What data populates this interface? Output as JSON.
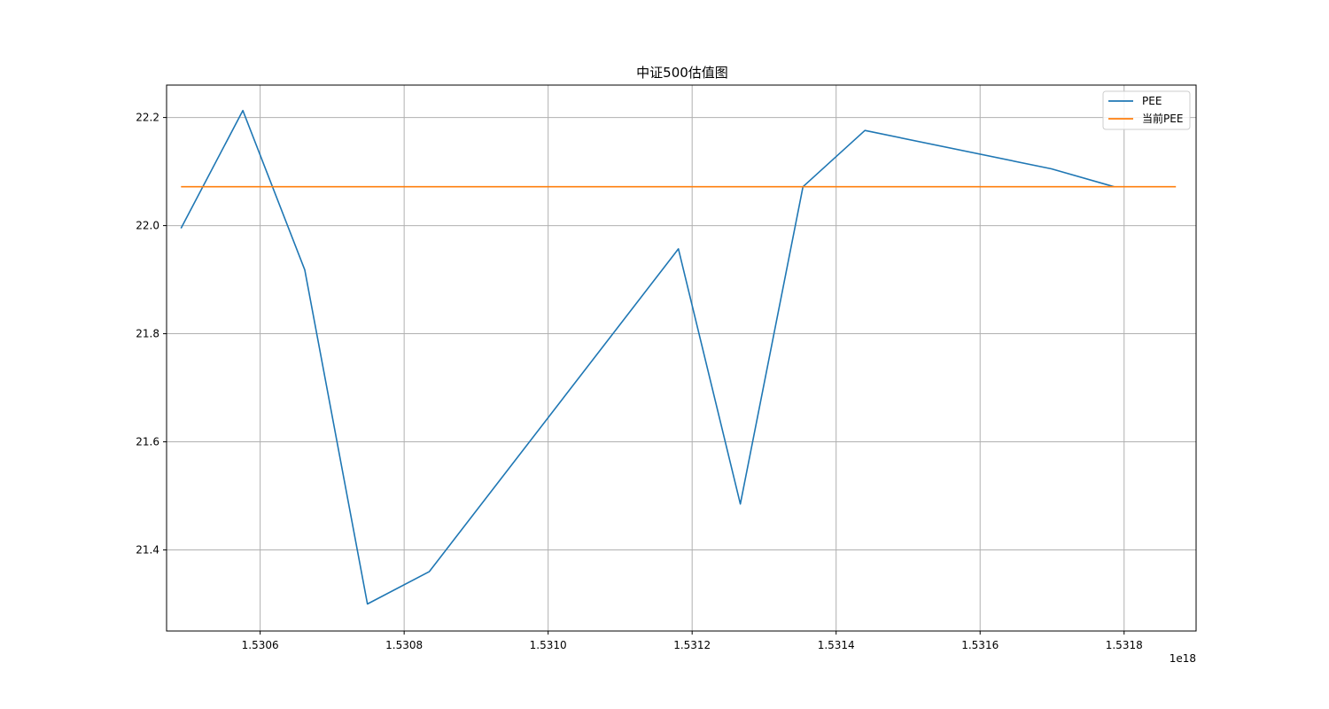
{
  "chart_data": {
    "type": "line",
    "title": "中证500估值图",
    "xlabel": "",
    "ylabel": "",
    "x_offset_label": "1e18",
    "xlim": [
      1.53047,
      1.5319
    ],
    "ylim": [
      21.25,
      22.26
    ],
    "grid": true,
    "legend_position": "top-right",
    "x_ticks": [
      1.5306,
      1.5308,
      1.531,
      1.5312,
      1.5314,
      1.5316,
      1.5318
    ],
    "x_tick_labels": [
      "1.5306",
      "1.5308",
      "1.5310",
      "1.5312",
      "1.5314",
      "1.5316",
      "1.5318"
    ],
    "y_ticks": [
      21.4,
      21.6,
      21.8,
      22.0,
      22.2
    ],
    "y_tick_labels": [
      "21.4",
      "21.6",
      "21.8",
      "22.0",
      "22.2"
    ],
    "series": [
      {
        "name": "PEE",
        "color": "#1f77b4",
        "x": [
          1.53049,
          1.530576,
          1.530662,
          1.530749,
          1.530835,
          1.531181,
          1.531267,
          1.531354,
          1.53144,
          1.531699,
          1.531786
        ],
        "y": [
          21.995,
          22.213,
          21.918,
          21.3,
          21.36,
          21.957,
          21.485,
          22.072,
          22.176,
          22.105,
          22.072
        ]
      },
      {
        "name": "当前PEE",
        "color": "#ff7f0e",
        "x": [
          1.53049,
          1.531872
        ],
        "y": [
          22.072,
          22.072
        ]
      }
    ]
  }
}
